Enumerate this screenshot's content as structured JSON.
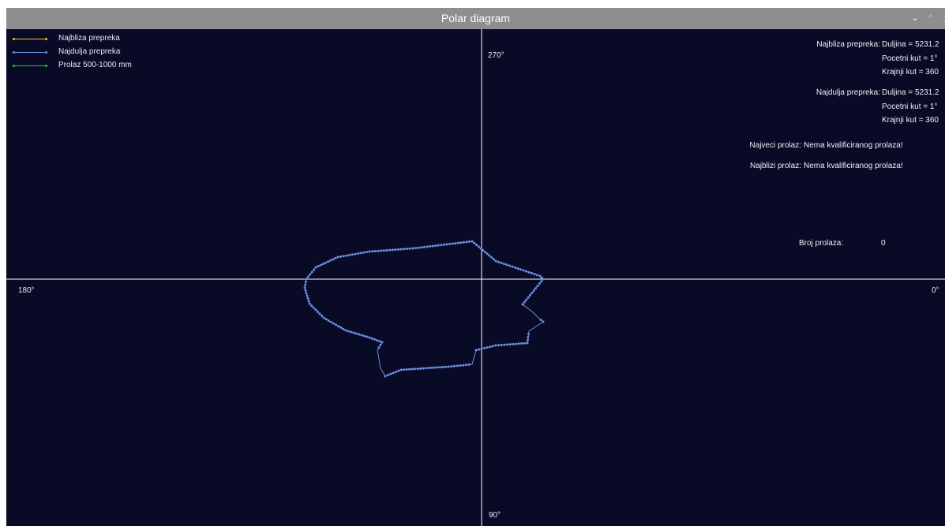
{
  "window": {
    "title": "Polar diagram",
    "minimize_glyph": "⌄",
    "maximize_glyph": "^",
    "close_glyph": "x"
  },
  "colors": {
    "background": "#090a26",
    "axes": "#ffffff",
    "nearest": "#f0c020",
    "farthest": "#6b8fe0",
    "passage": "#22cc22",
    "text": "#ffffff"
  },
  "legend": [
    {
      "label": "Najbliza prepreka",
      "color": "#f0c020"
    },
    {
      "label": "Najdulja prepreka",
      "color": "#6b8fe0"
    },
    {
      "label": "Prolaz 500-1000 mm",
      "color": "#22cc22"
    }
  ],
  "axis_labels": {
    "deg_0": "0°",
    "deg_90": "90°",
    "deg_180": "180°",
    "deg_270": "270°"
  },
  "info": {
    "nearest_label": "Najbliza prepreka:",
    "nearest_length": "Duljina = 5231.2",
    "nearest_start": "Pocetni kut = 1°",
    "nearest_end": "Krajnji kut = 360",
    "farthest_label": "Najdulja prepreka:",
    "farthest_length": "Duljina = 5231.2",
    "farthest_start": "Pocetni kut = 1°",
    "farthest_end": "Krajnji kut = 360",
    "largest_passage_label": "Najveci prolaz:",
    "largest_passage_value": "Nema kvalificiranog prolaza!",
    "closest_passage_label": "Najblizi prolaz:",
    "closest_passage_value": "Nema kvalificiranog prolaza!",
    "passage_count_label": "Broj prolaza:",
    "passage_count_value": "0"
  }
}
